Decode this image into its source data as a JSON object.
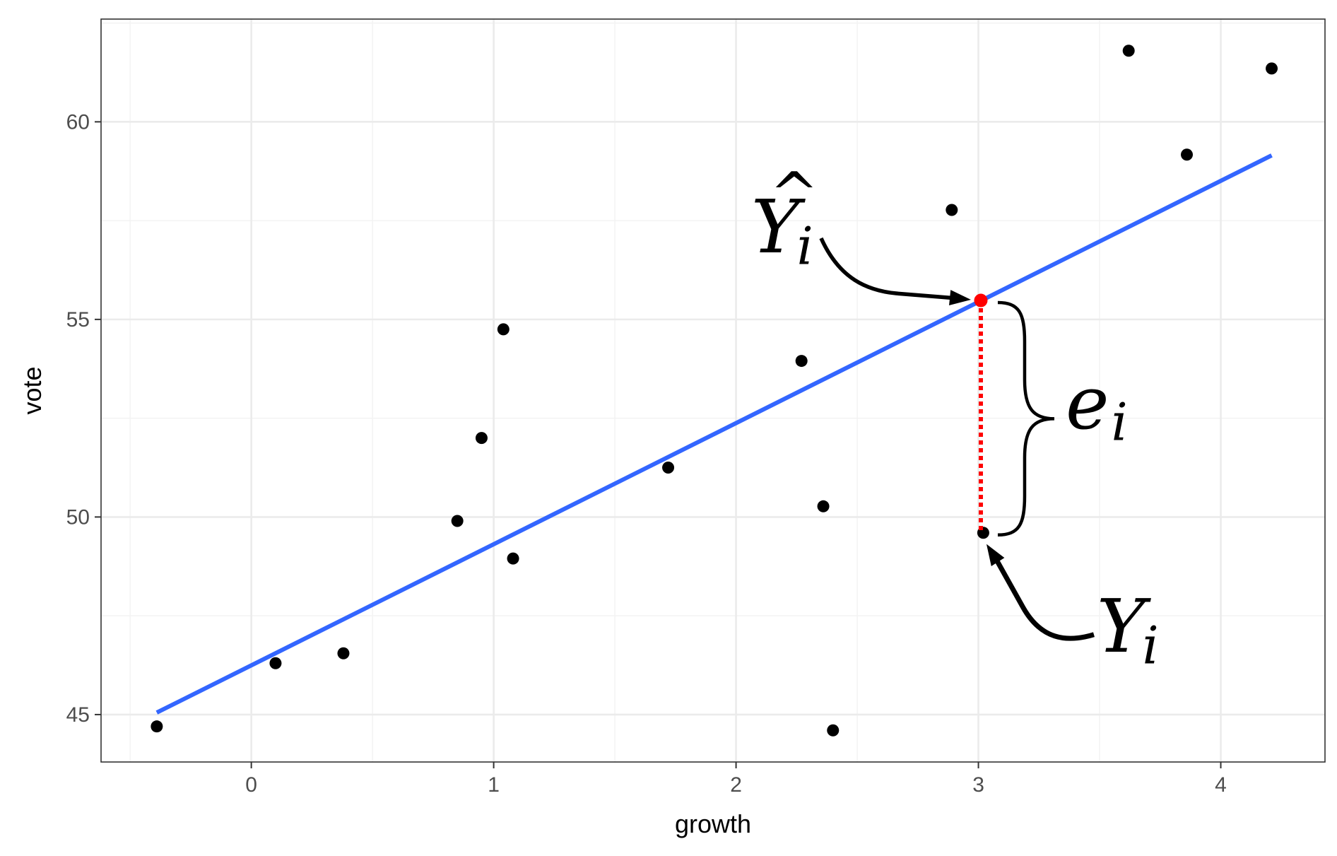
{
  "chart_data": {
    "type": "scatter",
    "xlabel": "growth",
    "ylabel": "vote",
    "xlim": [
      -0.62,
      4.43
    ],
    "ylim": [
      43.8,
      62.6
    ],
    "x_ticks": [
      0,
      1,
      2,
      3,
      4
    ],
    "y_ticks": [
      45,
      50,
      55,
      60
    ],
    "x_tick_labels": [
      "0",
      "1",
      "2",
      "3",
      "4"
    ],
    "y_tick_labels": [
      "45",
      "50",
      "55",
      "60"
    ],
    "grid": true,
    "points": [
      {
        "x": -0.39,
        "y": 44.7
      },
      {
        "x": 0.1,
        "y": 46.3
      },
      {
        "x": 0.38,
        "y": 46.55
      },
      {
        "x": 0.85,
        "y": 49.9
      },
      {
        "x": 0.95,
        "y": 52.0
      },
      {
        "x": 1.04,
        "y": 54.75
      },
      {
        "x": 1.08,
        "y": 48.95
      },
      {
        "x": 1.72,
        "y": 51.25
      },
      {
        "x": 2.27,
        "y": 53.95
      },
      {
        "x": 2.36,
        "y": 50.27
      },
      {
        "x": 2.4,
        "y": 44.6
      },
      {
        "x": 2.89,
        "y": 57.77
      },
      {
        "x": 3.02,
        "y": 49.6
      },
      {
        "x": 3.62,
        "y": 61.8
      },
      {
        "x": 3.86,
        "y": 59.17
      },
      {
        "x": 4.21,
        "y": 61.35
      }
    ],
    "fit_line": {
      "x": [
        -0.39,
        4.21
      ],
      "y": [
        45.05,
        59.15
      ],
      "color": "#3366FF"
    },
    "highlight": {
      "x": 3.01,
      "y_fitted": 55.48,
      "y_observed": 49.6,
      "color": "#FF0000"
    },
    "annotations": {
      "fitted_label": {
        "base": "Y",
        "hat": "^",
        "sub": "i"
      },
      "residual_label": {
        "base": "e",
        "sub": "i"
      },
      "observed_label": {
        "base": "Y",
        "sub": "i"
      }
    },
    "colors": {
      "points": "#000000",
      "grid_major": "#EBEBEB",
      "grid_minor": "#F3F3F3",
      "panel_border": "#333333"
    }
  }
}
